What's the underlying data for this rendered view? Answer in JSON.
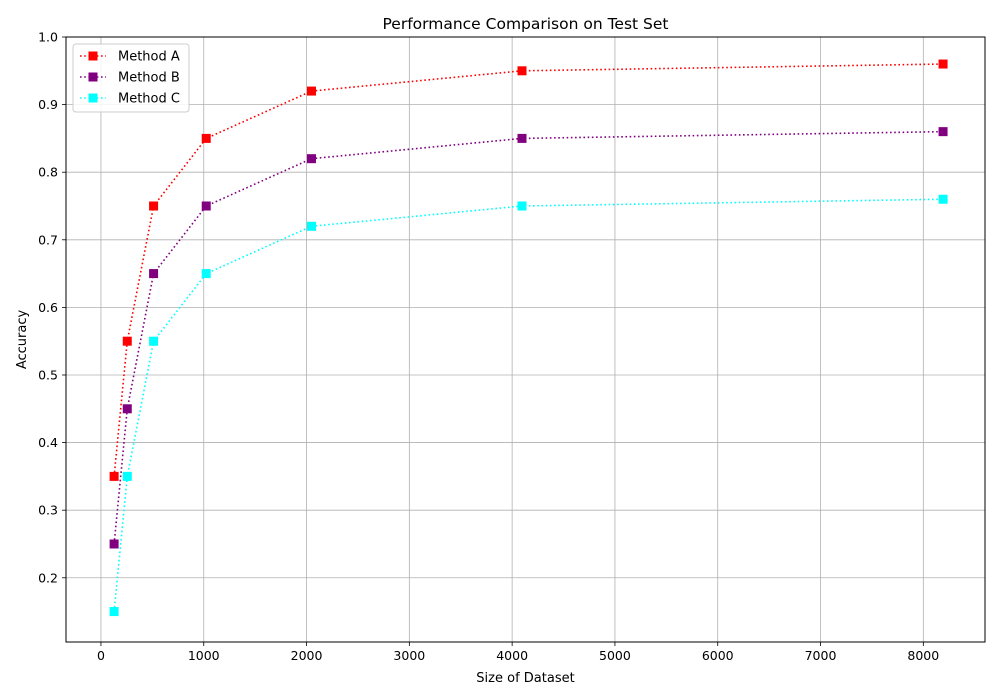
{
  "chart_data": {
    "type": "line",
    "title": "Performance Comparison on Test Set",
    "xlabel": "Size of Dataset",
    "ylabel": "Accuracy",
    "x": [
      128,
      256,
      512,
      1024,
      2048,
      4096,
      8192
    ],
    "xlim": [
      -340,
      8600
    ],
    "ylim": [
      0.105,
      1.0
    ],
    "xticks": [
      0,
      1000,
      2000,
      3000,
      4000,
      5000,
      6000,
      7000,
      8000
    ],
    "xtick_labels": [
      "0",
      "1000",
      "2000",
      "3000",
      "4000",
      "5000",
      "6000",
      "7000",
      "8000"
    ],
    "yticks": [
      0.2,
      0.3,
      0.4,
      0.5,
      0.6,
      0.7,
      0.8,
      0.9,
      1.0
    ],
    "ytick_labels": [
      "0.2",
      "0.3",
      "0.4",
      "0.5",
      "0.6",
      "0.7",
      "0.8",
      "0.9",
      "1.0"
    ],
    "grid": true,
    "legend_position": "top-left",
    "line_style": "dotted",
    "marker": "square",
    "series": [
      {
        "name": "Method A",
        "color": "#ff0000",
        "values": [
          0.35,
          0.55,
          0.75,
          0.85,
          0.92,
          0.95,
          0.96
        ]
      },
      {
        "name": "Method B",
        "color": "#800080",
        "values": [
          0.25,
          0.45,
          0.65,
          0.75,
          0.82,
          0.85,
          0.86
        ]
      },
      {
        "name": "Method C",
        "color": "#00ffff",
        "values": [
          0.15,
          0.35,
          0.55,
          0.65,
          0.72,
          0.75,
          0.76
        ]
      }
    ]
  }
}
